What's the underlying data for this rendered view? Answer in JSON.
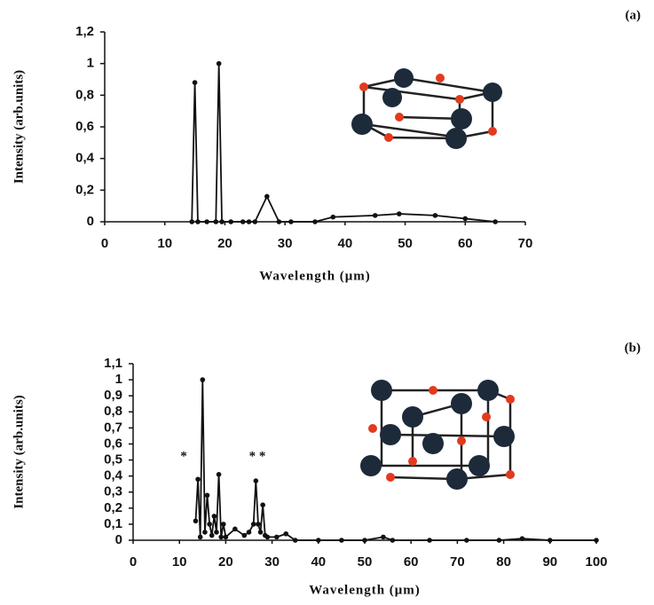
{
  "chart_data": [
    {
      "type": "line",
      "title": "(a)",
      "xlabel": "Wavelength (μm)",
      "ylabel": "Intensity (arb.units)",
      "color": "#111111",
      "x": [
        14.5,
        15,
        15.5,
        17,
        18.5,
        19,
        19.5,
        21,
        23,
        24,
        25,
        27,
        29,
        31,
        35,
        38,
        45,
        49,
        55,
        60,
        65
      ],
      "values": [
        0,
        0.88,
        0,
        0,
        0,
        1.0,
        0,
        0,
        0,
        0,
        0,
        0.16,
        0,
        0,
        0,
        0.03,
        0.04,
        0.05,
        0.04,
        0.02,
        0
      ],
      "xlim": [
        0,
        70
      ],
      "xticks": [
        0,
        10,
        20,
        30,
        40,
        50,
        60,
        70
      ],
      "ylim": [
        0,
        1.2
      ],
      "yticks": [
        0,
        {
          "value": 0.2,
          "label": "0,2"
        },
        {
          "value": 0.4,
          "label": "0,4"
        },
        {
          "value": 0.6,
          "label": "0,6"
        },
        {
          "value": 0.8,
          "label": "0,8"
        },
        1,
        {
          "value": 1.2,
          "label": "1,2"
        }
      ],
      "grid": false
    },
    {
      "type": "line",
      "title": "(b)",
      "xlabel": "Wavelength (μm)",
      "ylabel": "Intensity (arb.units)",
      "color": "#111111",
      "annotations": [
        "*",
        "* *"
      ],
      "x": [
        13.5,
        14,
        14.5,
        15,
        15.5,
        16,
        16.5,
        17,
        17.5,
        18,
        18.5,
        19,
        19.5,
        20,
        22,
        24,
        25,
        26,
        26.5,
        27,
        27.5,
        28,
        28.5,
        29,
        31,
        33,
        35,
        40,
        45,
        50,
        54,
        56,
        64,
        72,
        79,
        84,
        90,
        100
      ],
      "values": [
        0.12,
        0.38,
        0.02,
        1.0,
        0.05,
        0.28,
        0.1,
        0.03,
        0.15,
        0.05,
        0.41,
        0.02,
        0.1,
        0.02,
        0.07,
        0.03,
        0.05,
        0.1,
        0.37,
        0.1,
        0.05,
        0.22,
        0.03,
        0.02,
        0.02,
        0.04,
        0,
        0,
        0,
        0,
        0.02,
        0,
        0,
        0,
        0,
        0.01,
        0,
        0
      ],
      "xlim": [
        0,
        100
      ],
      "xticks": [
        0,
        10,
        20,
        30,
        40,
        50,
        60,
        70,
        80,
        90,
        100
      ],
      "ylim": [
        0,
        1.1
      ],
      "yticks": [
        0,
        {
          "value": 0.1,
          "label": "0,1"
        },
        {
          "value": 0.2,
          "label": "0,2"
        },
        {
          "value": 0.3,
          "label": "0,3"
        },
        {
          "value": 0.4,
          "label": "0,4"
        },
        {
          "value": 0.5,
          "label": "0,5"
        },
        {
          "value": 0.6,
          "label": "0,6"
        },
        {
          "value": 0.7,
          "label": "0,7"
        },
        {
          "value": 0.8,
          "label": "0,8"
        },
        {
          "value": 0.9,
          "label": "0,9"
        },
        1,
        {
          "value": 1.1,
          "label": "1,1"
        }
      ],
      "grid": false
    }
  ]
}
